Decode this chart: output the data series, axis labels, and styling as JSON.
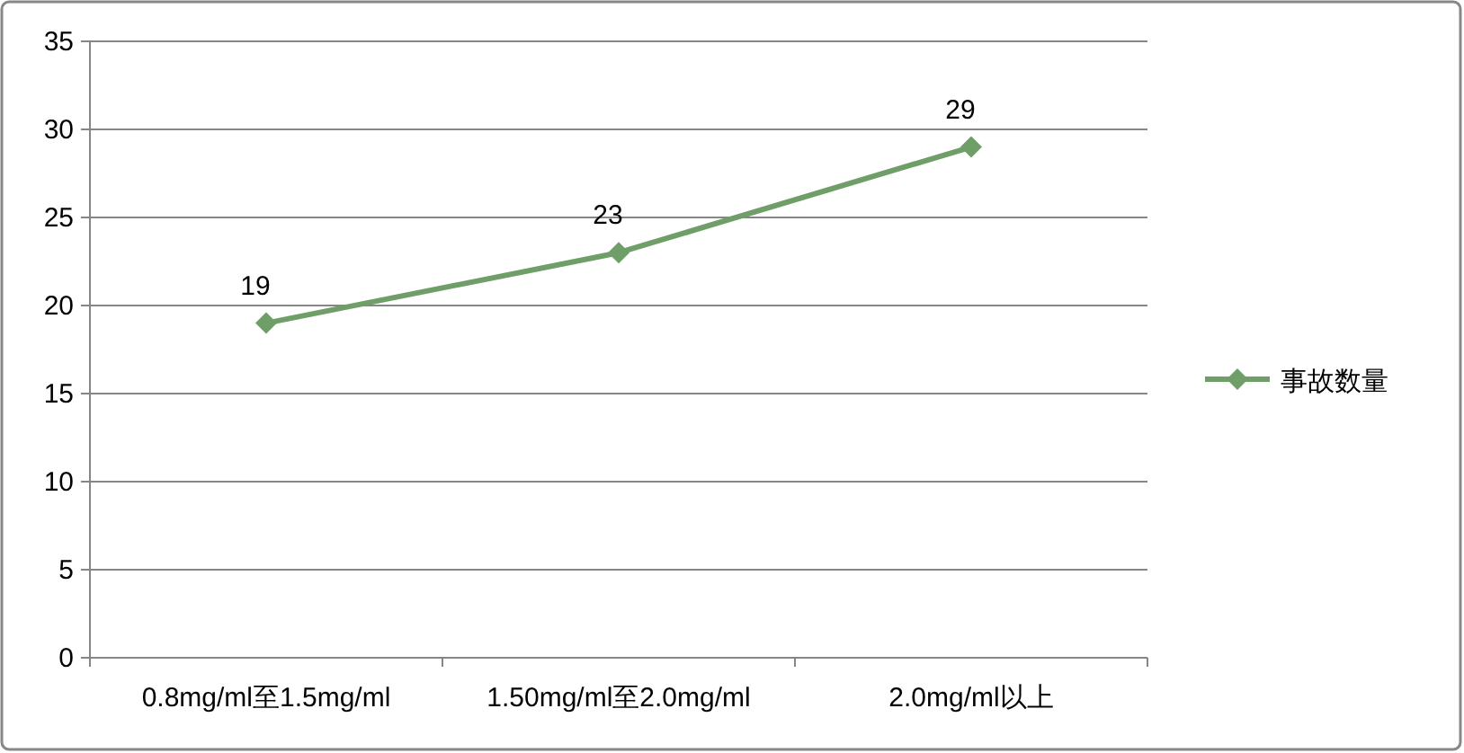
{
  "chart_data": {
    "type": "line",
    "categories": [
      "0.8mg/ml至1.5mg/ml",
      "1.50mg/ml至2.0mg/ml",
      "2.0mg/ml以上"
    ],
    "series": [
      {
        "name": "事故数量",
        "color": "#6f9e68",
        "values": [
          19,
          23,
          29
        ]
      }
    ],
    "ylim": [
      0,
      35
    ],
    "yticks": [
      0,
      5,
      10,
      15,
      20,
      25,
      30,
      35
    ],
    "grid": "y",
    "legend": "right",
    "marker": "diamond",
    "data_labels": true
  }
}
